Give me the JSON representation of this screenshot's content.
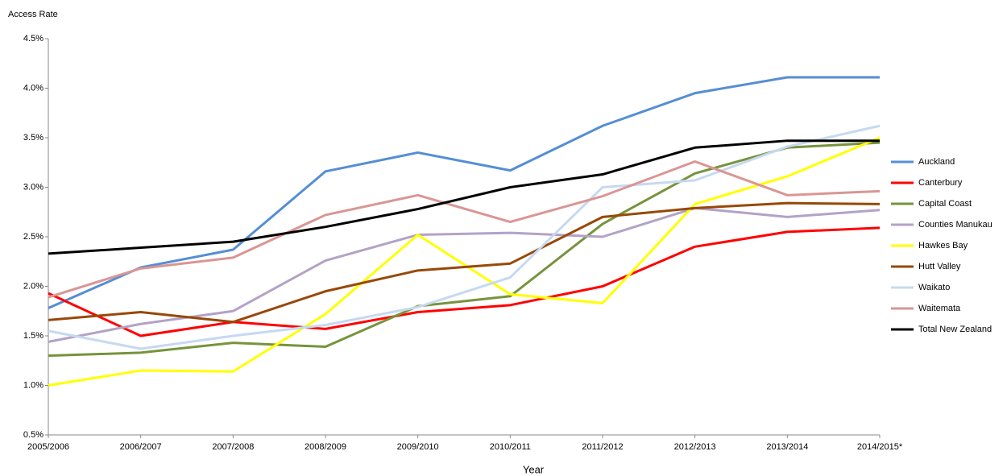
{
  "chart_data": {
    "type": "line",
    "y_axis_label": "Access Rate",
    "x_axis_label": "Year",
    "categories": [
      "2005/2006",
      "2006/2007",
      "2007/2008",
      "2008/2009",
      "2009/2010",
      "2010/2011",
      "2011/2012",
      "2012/2013",
      "2013/2014",
      "2014/2015*"
    ],
    "ylim": [
      0.5,
      4.5
    ],
    "yticks": [
      {
        "value": 0.5,
        "label": "0.5%"
      },
      {
        "value": 1.0,
        "label": "1.0%"
      },
      {
        "value": 1.5,
        "label": "1.5%"
      },
      {
        "value": 2.0,
        "label": "2.0%"
      },
      {
        "value": 2.5,
        "label": "2.5%"
      },
      {
        "value": 3.0,
        "label": "3.0%"
      },
      {
        "value": 3.5,
        "label": "3.5%"
      },
      {
        "value": 4.0,
        "label": "4.0%"
      },
      {
        "value": 4.5,
        "label": "4.5%"
      }
    ],
    "grid": false,
    "legend": "right",
    "series": [
      {
        "name": "Auckland",
        "color": "#558ed5",
        "values": [
          1.78,
          2.19,
          2.37,
          3.16,
          3.35,
          3.17,
          3.62,
          3.95,
          4.11,
          4.11
        ]
      },
      {
        "name": "Canterbury",
        "color": "#ff0000",
        "values": [
          1.93,
          1.5,
          1.64,
          1.57,
          1.74,
          1.81,
          2.0,
          2.4,
          2.55,
          2.59
        ]
      },
      {
        "name": "Capital Coast",
        "color": "#77933c",
        "values": [
          1.3,
          1.33,
          1.43,
          1.39,
          1.8,
          1.9,
          2.63,
          3.14,
          3.4,
          3.45
        ]
      },
      {
        "name": "Counties Manukau",
        "color": "#b3a2c7",
        "values": [
          1.44,
          1.62,
          1.75,
          2.26,
          2.52,
          2.54,
          2.5,
          2.79,
          2.7,
          2.77
        ]
      },
      {
        "name": "Hawkes Bay",
        "color": "#ffff00",
        "values": [
          1.0,
          1.15,
          1.14,
          1.72,
          2.52,
          1.92,
          1.83,
          2.83,
          3.11,
          3.5
        ]
      },
      {
        "name": "Hutt Valley",
        "color": "#984807",
        "values": [
          1.66,
          1.74,
          1.64,
          1.95,
          2.16,
          2.23,
          2.7,
          2.79,
          2.84,
          2.83
        ]
      },
      {
        "name": "Waikato",
        "color": "#c6d9f1",
        "values": [
          1.55,
          1.37,
          1.5,
          1.61,
          1.79,
          2.09,
          3.0,
          3.07,
          3.41,
          3.62
        ]
      },
      {
        "name": "Waitemata",
        "color": "#d99694",
        "values": [
          1.89,
          2.18,
          2.29,
          2.72,
          2.92,
          2.65,
          2.91,
          3.26,
          2.92,
          2.96
        ]
      },
      {
        "name": "Total New Zealand",
        "color": "#000000",
        "values": [
          2.33,
          2.39,
          2.45,
          2.6,
          2.78,
          3.0,
          3.13,
          3.4,
          3.47,
          3.47
        ]
      }
    ]
  }
}
